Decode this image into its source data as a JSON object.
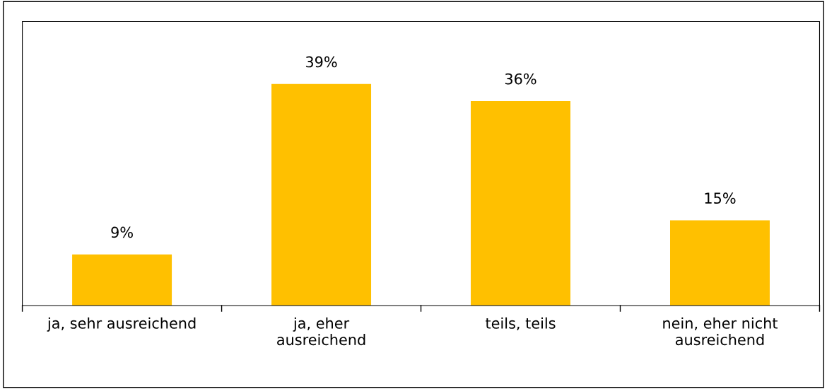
{
  "chart_data": {
    "type": "bar",
    "categories": [
      "ja, sehr ausreichend",
      "ja, eher\nausreichend",
      "teils, teils",
      "nein, eher nicht\nausreichend"
    ],
    "values": [
      9,
      39,
      36,
      15
    ],
    "value_labels": [
      "9%",
      "39%",
      "36%",
      "15%"
    ],
    "color": "#ffc000",
    "ylim": [
      0,
      50
    ],
    "tick_labels": "x",
    "grid": false,
    "legend": false
  }
}
